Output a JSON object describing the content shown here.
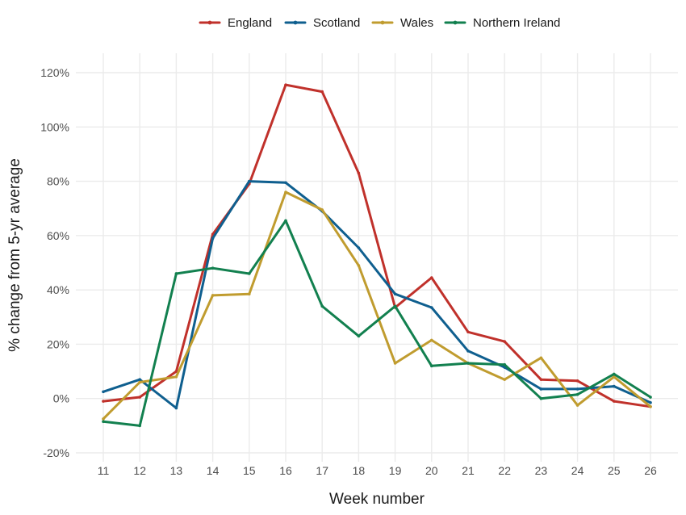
{
  "chart_data": {
    "type": "line",
    "xlabel": "Week number",
    "ylabel": "% change from 5-yr average",
    "x": [
      11,
      12,
      13,
      14,
      15,
      16,
      17,
      18,
      19,
      20,
      21,
      22,
      23,
      24,
      25,
      26
    ],
    "x_ticks": [
      "11",
      "12",
      "13",
      "14",
      "15",
      "16",
      "17",
      "18",
      "19",
      "20",
      "21",
      "22",
      "23",
      "24",
      "25",
      "26"
    ],
    "xlim": [
      10.5,
      26.5
    ],
    "ylim": [
      -20,
      120
    ],
    "y_ticks": [
      -20,
      0,
      20,
      40,
      60,
      80,
      100,
      120
    ],
    "y_tick_labels": [
      "-20%",
      "0%",
      "20%",
      "40%",
      "60%",
      "80%",
      "100%",
      "120%"
    ],
    "grid": true,
    "legend_position": "top",
    "series": [
      {
        "name": "England",
        "color": "#c0312b",
        "values": [
          -1,
          0.5,
          10,
          60.5,
          79,
          115.5,
          113,
          83,
          33.5,
          44.5,
          24.5,
          21,
          7,
          6.5,
          -1,
          -3
        ]
      },
      {
        "name": "Scotland",
        "color": "#0f5f8f",
        "values": [
          2.5,
          7,
          -3.5,
          59,
          80,
          79.5,
          69,
          55.5,
          38.5,
          33.5,
          17.5,
          11.5,
          3.5,
          3.5,
          4.5,
          -1.5
        ]
      },
      {
        "name": "Wales",
        "color": "#c09c2f",
        "values": [
          -7.5,
          6,
          8,
          38,
          38.5,
          76,
          69.5,
          49,
          13,
          21.5,
          13,
          7,
          15,
          -2.5,
          8,
          -3
        ]
      },
      {
        "name": "Northern Ireland",
        "color": "#12804f",
        "values": [
          -8.5,
          -10,
          46,
          48,
          46,
          65.5,
          34,
          23,
          34,
          12,
          13,
          12.5,
          0,
          1.5,
          9,
          0.5
        ]
      }
    ]
  }
}
